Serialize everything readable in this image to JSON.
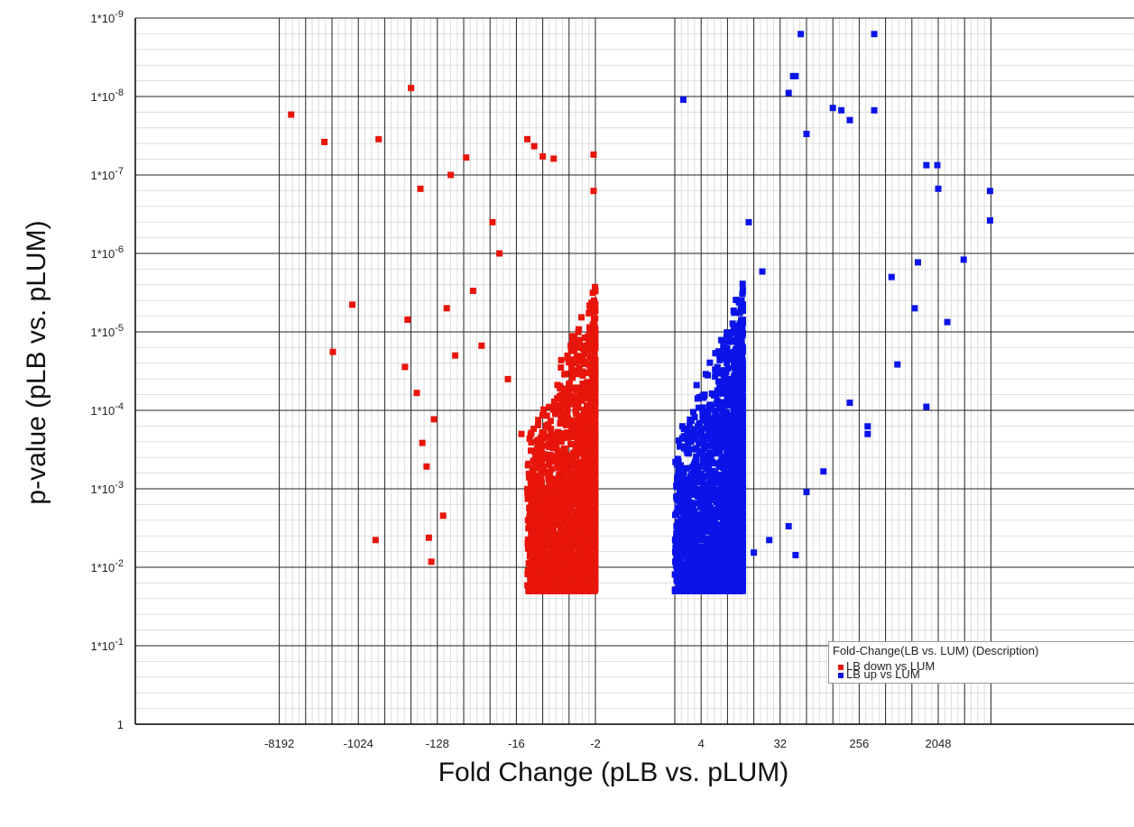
{
  "chart_data": {
    "type": "scatter",
    "xlabel": "Fold Change (pLB vs. pLUM)",
    "ylabel": "p-value (pLB vs. pLUM)",
    "x_ticks": [
      "-8192",
      "-1024",
      "-128",
      "-16",
      "-2",
      "4",
      "32",
      "256",
      "2048"
    ],
    "y_ticks": [
      "1*10^-9",
      "1*10^-8",
      "1*10^-7",
      "1*10^-6",
      "1*10^-5",
      "1*10^-4",
      "1*10^-3",
      "1*10^-2",
      "1*10^-1",
      "1"
    ],
    "xscale": "signed log2 fold change",
    "yscale": "log10 p-value (inverted)",
    "grid": true,
    "legend_position": "bottom-right",
    "legend_title": "Fold-Change(LB vs. LUM) (Description)",
    "series": [
      {
        "name": "LB down vs LUM",
        "color": "#e8150b",
        "points": [
          [
            -6000,
            1.7e-08
          ],
          [
            -2500,
            3.8e-08
          ],
          [
            -2000,
            1.8e-05
          ],
          [
            -1200,
            4.5e-06
          ],
          [
            -600,
            3.5e-08
          ],
          [
            -650,
            0.0045
          ],
          [
            -256,
            7.8e-09
          ],
          [
            -200,
            1.5e-07
          ],
          [
            -170,
            0.00052
          ],
          [
            -160,
            0.0042
          ],
          [
            -150,
            0.0085
          ],
          [
            -110,
            0.0022
          ],
          [
            -90,
            1e-07
          ],
          [
            -60,
            6e-08
          ],
          [
            -30,
            4e-07
          ],
          [
            -12,
            3.5e-08
          ],
          [
            -10,
            4.3e-08
          ],
          [
            -8,
            5.8e-08
          ],
          [
            -6,
            6.2e-08
          ],
          [
            -2.1,
            5.5e-08
          ],
          [
            -2.1,
            1.6e-07
          ],
          [
            -300,
            2.8e-05
          ],
          [
            -280,
            7e-06
          ],
          [
            -220,
            6e-05
          ],
          [
            -190,
            0.00026
          ],
          [
            -140,
            0.00013
          ],
          [
            -100,
            5e-06
          ],
          [
            -80,
            2e-05
          ],
          [
            -50,
            3e-06
          ],
          [
            -40,
            1.5e-05
          ],
          [
            -25,
            1e-06
          ],
          [
            -20,
            4e-05
          ],
          [
            -14,
            0.0002
          ],
          [
            -11,
            0.0008
          ],
          [
            -9,
            0.003
          ],
          [
            -7,
            0.011
          ]
        ]
      },
      {
        "name": "LB up vs LUM",
        "color": "#0a14e8",
        "points": [
          [
            2.5,
            1.1e-08
          ],
          [
            45,
            5.5e-09
          ],
          [
            40,
            9e-09
          ],
          [
            48,
            5.5e-09
          ],
          [
            380,
            1.6e-09
          ],
          [
            55,
            1.6e-09
          ],
          [
            380,
            1.5e-08
          ],
          [
            128,
            1.4e-08
          ],
          [
            160,
            1.5e-08
          ],
          [
            200,
            2e-08
          ],
          [
            64,
            3e-08
          ],
          [
            1500,
            7.5e-08
          ],
          [
            2000,
            7.5e-08
          ],
          [
            8000,
            1.6e-07
          ],
          [
            8000,
            3.8e-07
          ],
          [
            4000,
            1.2e-06
          ],
          [
            2600,
            7.5e-06
          ],
          [
            1500,
            9e-05
          ],
          [
            700,
            2.6e-05
          ],
          [
            1100,
            5e-06
          ],
          [
            320,
            0.0002
          ],
          [
            320,
            0.00016
          ],
          [
            64,
            0.0011
          ],
          [
            40,
            0.003
          ],
          [
            48,
            0.007
          ],
          [
            24,
            0.0045
          ],
          [
            16,
            0.0065
          ],
          [
            12,
            0.019
          ],
          [
            8,
            0.017
          ],
          [
            100,
            0.0006
          ],
          [
            200,
            8e-05
          ],
          [
            600,
            2e-06
          ],
          [
            1200,
            1.3e-06
          ],
          [
            2048,
            1.5e-07
          ],
          [
            14,
            4e-07
          ],
          [
            20,
            1.7e-06
          ]
        ]
      }
    ],
    "dense_regions": [
      {
        "series": "LB down vs LUM",
        "x_range": [
          -12,
          -2
        ],
        "p_range": [
          2e-06,
          0.02
        ],
        "approx_points": 2200
      },
      {
        "series": "LB up vs LUM",
        "x_range": [
          2,
          12
        ],
        "p_range": [
          2e-06,
          0.02
        ],
        "approx_points": 2400
      }
    ]
  }
}
